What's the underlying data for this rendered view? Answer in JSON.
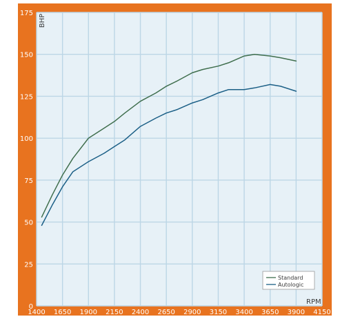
{
  "chart_data": {
    "type": "line",
    "title": "",
    "xlabel": "RPM",
    "ylabel": "BHP",
    "xlim": [
      1400,
      4150
    ],
    "ylim": [
      0,
      175
    ],
    "x_ticks": [
      1400,
      1650,
      1900,
      2150,
      2400,
      2650,
      2900,
      3150,
      3400,
      3650,
      3900,
      4150
    ],
    "y_ticks": [
      0,
      25,
      50,
      75,
      100,
      125,
      150,
      175
    ],
    "grid": true,
    "legend_position": "bottom-right",
    "series": [
      {
        "name": "Standard",
        "color": "#3f6e4d",
        "x": [
          1450,
          1550,
          1650,
          1750,
          1900,
          2050,
          2150,
          2250,
          2400,
          2550,
          2650,
          2750,
          2900,
          3000,
          3150,
          3250,
          3400,
          3500,
          3650,
          3750,
          3900
        ],
        "y": [
          53,
          66,
          78,
          88,
          100,
          106,
          110,
          115,
          122,
          127,
          131,
          134,
          139,
          141,
          143,
          145,
          149,
          150,
          149,
          148,
          146
        ]
      },
      {
        "name": "Autologic",
        "color": "#1b5f86",
        "x": [
          1450,
          1550,
          1650,
          1750,
          1900,
          2050,
          2150,
          2250,
          2400,
          2550,
          2650,
          2750,
          2900,
          3000,
          3150,
          3250,
          3400,
          3500,
          3650,
          3750,
          3900
        ],
        "y": [
          48,
          60,
          71,
          80,
          86,
          91,
          95,
          99,
          107,
          112,
          115,
          117,
          121,
          123,
          127,
          129,
          129,
          130,
          132,
          131,
          128
        ]
      }
    ]
  }
}
